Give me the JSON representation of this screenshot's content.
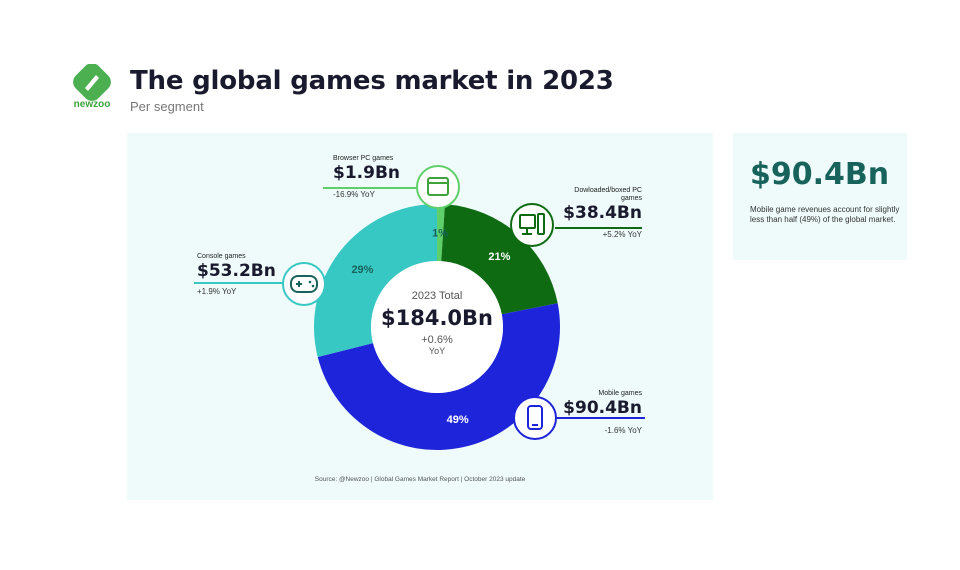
{
  "brand": {
    "name": "newzoo"
  },
  "header": {
    "title": "The global games market in 2023",
    "subtitle": "Per segment"
  },
  "callout": {
    "value": "$90.4Bn",
    "text": "Mobile game revenues account for slightly less than half (49%) of the global market."
  },
  "center": {
    "label": "2023 Total",
    "value": "$184.0Bn",
    "change": "+0.6%",
    "yoy": "YoY"
  },
  "source": "Source: @Newzoo | Global Games Market Report | October 2023 update",
  "segments": {
    "browser": {
      "label": "Browser PC games",
      "value": "$1.9Bn",
      "yoy": "-16.9% YoY",
      "icon": "browser-window-icon"
    },
    "pc": {
      "label": "Dowloaded/boxed PC games",
      "value": "$38.4Bn",
      "yoy": "+5.2% YoY",
      "icon": "desktop-pc-icon"
    },
    "console": {
      "label": "Console games",
      "value": "$53.2Bn",
      "yoy": "+1.9% YoY",
      "icon": "gamepad-icon"
    },
    "mobile": {
      "label": "Mobile games",
      "value": "$90.4Bn",
      "yoy": "-1.6% YoY",
      "icon": "smartphone-icon"
    }
  },
  "colors": {
    "browser": "#5fcf6a",
    "pc": "#0f6b12",
    "mobile": "#1e24d9",
    "console": "#38c8c4",
    "accent": "#17635b"
  },
  "chart_data": {
    "type": "pie",
    "donut": true,
    "categories": [
      "Browser PC games",
      "Dowloaded/boxed PC games",
      "Mobile games",
      "Console games"
    ],
    "values": [
      1.9,
      38.4,
      90.4,
      53.2
    ],
    "percent_labels": [
      "1%",
      "21%",
      "49%",
      "29%"
    ],
    "total": 184.0
  }
}
